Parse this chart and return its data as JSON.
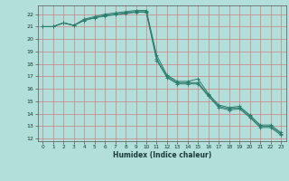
{
  "xlabel": "Humidex (Indice chaleur)",
  "xlim": [
    -0.5,
    23.5
  ],
  "ylim": [
    11.8,
    22.7
  ],
  "yticks": [
    12,
    13,
    14,
    15,
    16,
    17,
    18,
    19,
    20,
    21,
    22
  ],
  "xticks": [
    0,
    1,
    2,
    3,
    4,
    5,
    6,
    7,
    8,
    9,
    10,
    11,
    12,
    13,
    14,
    15,
    16,
    17,
    18,
    19,
    20,
    21,
    22,
    23
  ],
  "background_color": "#b2dfd9",
  "grid_color": "#e8c8c8",
  "line_color": "#2d7d6e",
  "series": [
    [
      21.0,
      21.0,
      21.3,
      21.1,
      21.6,
      21.8,
      22.0,
      22.1,
      22.2,
      22.3,
      22.3,
      18.7,
      17.1,
      16.6,
      16.6,
      16.8,
      15.6,
      14.7,
      14.5,
      14.6,
      13.9,
      13.1,
      13.1,
      12.5
    ],
    [
      21.0,
      21.0,
      21.3,
      21.1,
      21.5,
      21.7,
      21.9,
      22.0,
      22.1,
      22.2,
      22.2,
      18.4,
      17.0,
      16.5,
      16.5,
      16.5,
      15.5,
      14.6,
      14.4,
      14.5,
      13.8,
      13.0,
      13.0,
      12.4
    ],
    [
      21.0,
      21.0,
      21.3,
      21.1,
      21.5,
      21.7,
      21.85,
      21.95,
      22.05,
      22.15,
      22.15,
      18.3,
      16.9,
      16.4,
      16.4,
      16.4,
      15.4,
      14.5,
      14.3,
      14.4,
      13.7,
      12.9,
      12.9,
      12.3
    ]
  ]
}
